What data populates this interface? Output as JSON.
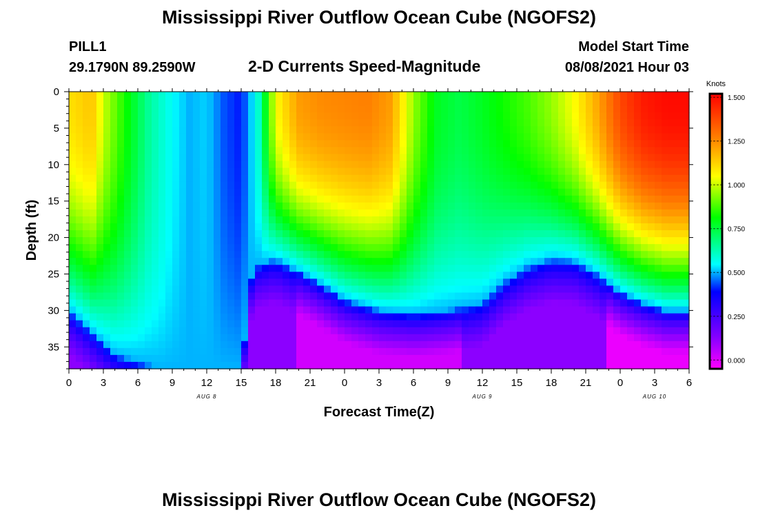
{
  "header": {
    "title": "Mississippi River Outflow Ocean Cube (NGOFS2)",
    "station": "PILL1",
    "coords": "29.1790N  89.2590W",
    "subtitle": "2-D Currents Speed-Magnitude",
    "model_start_label": "Model Start Time",
    "model_start_value": "08/08/2021 Hour 03"
  },
  "footer": {
    "title": "Mississippi River Outflow Ocean Cube (NGOFS2)"
  },
  "chart_data": {
    "type": "heatmap",
    "title": "2-D Currents Speed-Magnitude",
    "xlabel": "Forecast Time(Z)",
    "ylabel": "Depth (ft)",
    "x_range_hours": [
      0,
      54
    ],
    "y_range_ft": [
      0,
      38
    ],
    "y_inverted": true,
    "x_tick_labels": [
      "0",
      "3",
      "6",
      "9",
      "12",
      "15",
      "18",
      "21",
      "0",
      "3",
      "6",
      "9",
      "12",
      "15",
      "18",
      "21",
      "0",
      "3",
      "6"
    ],
    "date_labels": [
      {
        "label": "AUG 8",
        "at_hour": 12
      },
      {
        "label": "AUG 9",
        "at_hour": 36
      },
      {
        "label": "AUG 10",
        "at_hour": 51
      }
    ],
    "y_ticks": [
      0,
      5,
      10,
      15,
      20,
      25,
      30,
      35
    ],
    "colorbar": {
      "unit": "Knots",
      "min": -0.05,
      "max": 1.52,
      "ticks": [
        "1.500",
        "1.250",
        "1.000",
        "0.750",
        "0.500",
        "0.250",
        "0.000"
      ],
      "tick_values": [
        1.5,
        1.25,
        1.0,
        0.75,
        0.5,
        0.25,
        0.0
      ],
      "colors": [
        "#ff00ff",
        "#8000ff",
        "#0000ff",
        "#00ffff",
        "#00ff00",
        "#ffff00",
        "#ff8000",
        "#ff0000"
      ]
    },
    "surface_speed_knots": [
      [
        0,
        1.1
      ],
      [
        2,
        1.15
      ],
      [
        3,
        1.0
      ],
      [
        5,
        0.82
      ],
      [
        7,
        0.65
      ],
      [
        9,
        0.55
      ],
      [
        10.5,
        0.5
      ],
      [
        12,
        0.52
      ],
      [
        13.5,
        0.44
      ],
      [
        15,
        0.4
      ],
      [
        16.5,
        0.6
      ],
      [
        18,
        1.05
      ],
      [
        20,
        1.22
      ],
      [
        22,
        1.25
      ],
      [
        24,
        1.26
      ],
      [
        26,
        1.27
      ],
      [
        28,
        1.22
      ],
      [
        30,
        0.95
      ],
      [
        32,
        0.78
      ],
      [
        34,
        0.74
      ],
      [
        36,
        0.78
      ],
      [
        38,
        0.83
      ],
      [
        40,
        0.88
      ],
      [
        42,
        0.95
      ],
      [
        44,
        1.05
      ],
      [
        46,
        1.2
      ],
      [
        48,
        1.38
      ],
      [
        50,
        1.47
      ],
      [
        52,
        1.5
      ],
      [
        54,
        1.5
      ]
    ],
    "bottom_layer_top_ft": [
      [
        0,
        30
      ],
      [
        4,
        36
      ],
      [
        8,
        38
      ],
      [
        12,
        38
      ],
      [
        15,
        38
      ],
      [
        16,
        24
      ],
      [
        18,
        23
      ],
      [
        21,
        25.5
      ],
      [
        24,
        28.5
      ],
      [
        27,
        30
      ],
      [
        30,
        30.5
      ],
      [
        33,
        30
      ],
      [
        36,
        29
      ],
      [
        38,
        26
      ],
      [
        40,
        24
      ],
      [
        42,
        23
      ],
      [
        44,
        23.2
      ],
      [
        46,
        25
      ],
      [
        48,
        27.5
      ],
      [
        50,
        29
      ],
      [
        52,
        30
      ],
      [
        54,
        30
      ]
    ]
  }
}
